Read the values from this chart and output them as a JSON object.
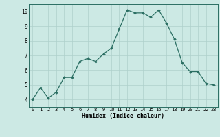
{
  "x": [
    0,
    1,
    2,
    3,
    4,
    5,
    6,
    7,
    8,
    9,
    10,
    11,
    12,
    13,
    14,
    15,
    16,
    17,
    18,
    19,
    20,
    21,
    22,
    23
  ],
  "y": [
    4.0,
    4.8,
    4.1,
    4.5,
    5.5,
    5.5,
    6.6,
    6.8,
    6.6,
    7.1,
    7.5,
    8.8,
    10.1,
    9.9,
    9.9,
    9.6,
    10.1,
    9.2,
    8.1,
    6.5,
    5.9,
    5.9,
    5.1,
    5.0
  ],
  "xlabel": "Humidex (Indice chaleur)",
  "ylim": [
    3.5,
    10.5
  ],
  "xlim": [
    -0.5,
    23.5
  ],
  "yticks": [
    4,
    5,
    6,
    7,
    8,
    9,
    10
  ],
  "line_color": "#2a6e62",
  "marker_color": "#2a6e62",
  "bg_color": "#cce9e4",
  "grid_color": "#aed0cb",
  "axes_bg": "#cce9e4",
  "xlabel_fontsize": 6.0,
  "ytick_fontsize": 5.5,
  "xtick_fontsize": 5.0
}
